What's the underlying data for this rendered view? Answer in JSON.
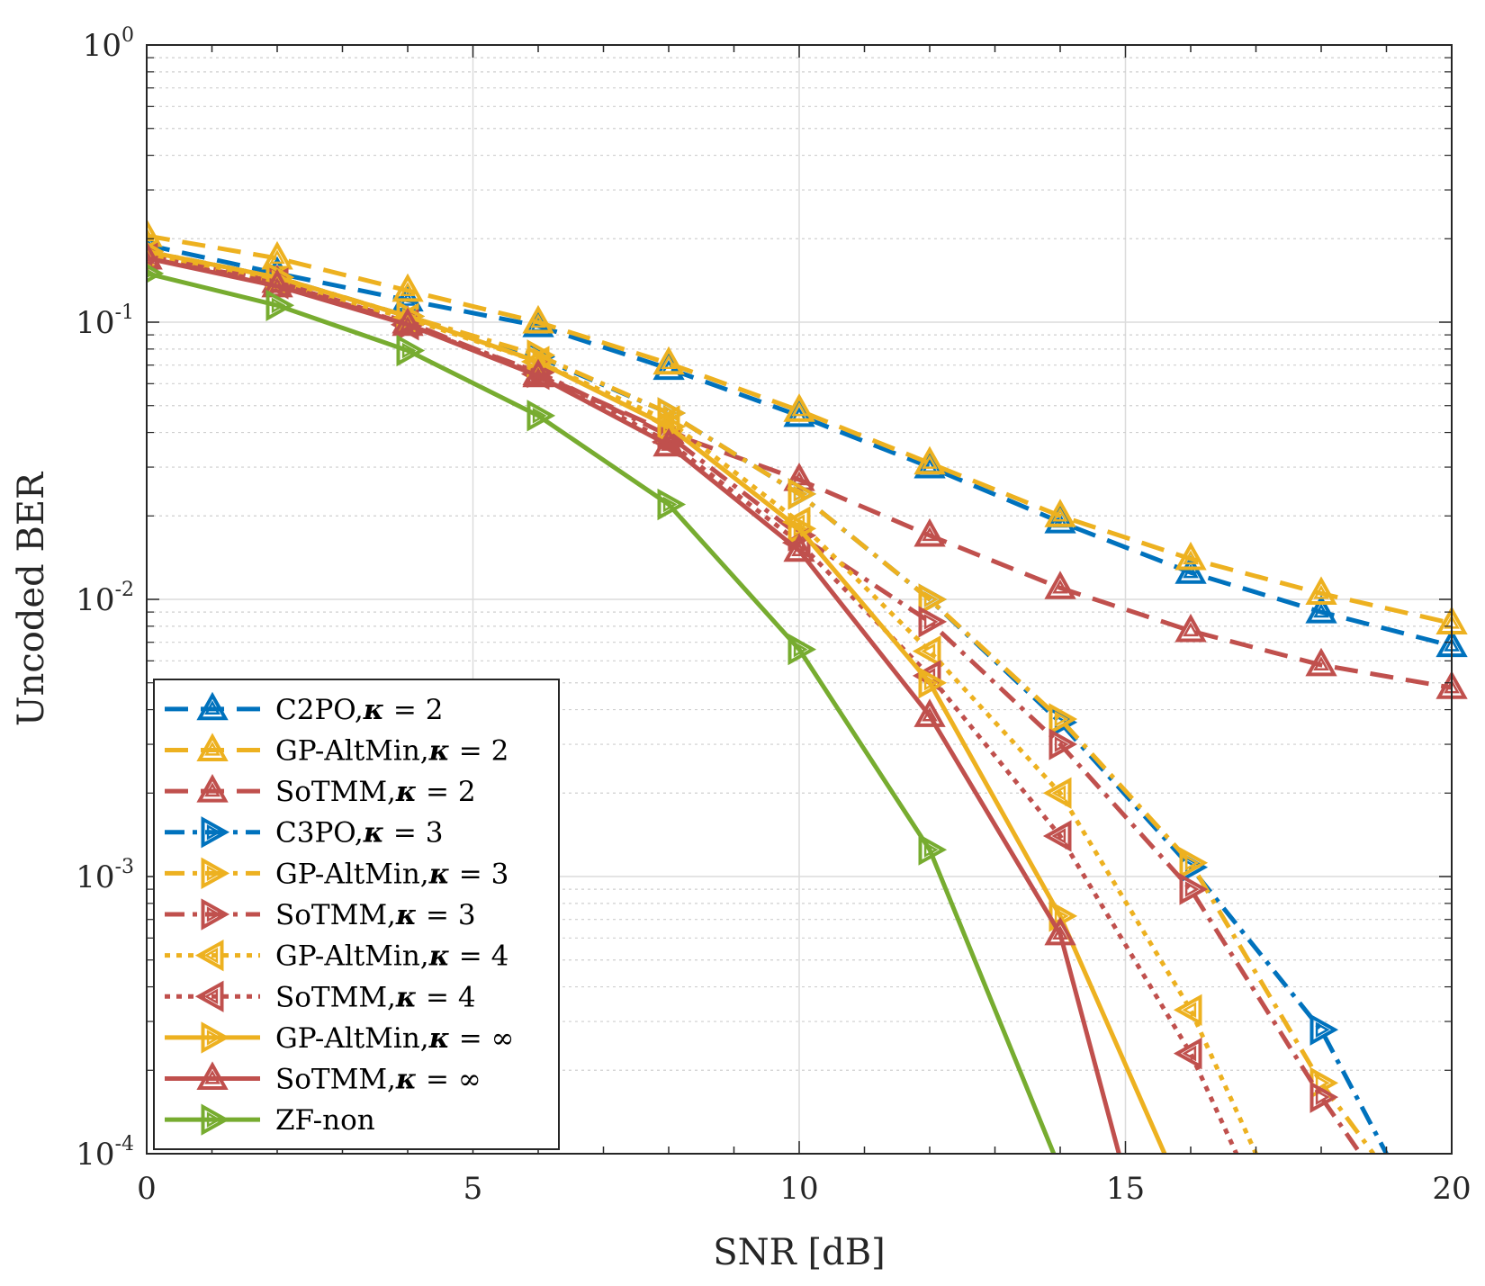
{
  "chart_data": {
    "type": "line",
    "title": "",
    "xlabel": "SNR [dB]",
    "ylabel": "Uncoded BER",
    "xlim": [
      0,
      20
    ],
    "ylim": [
      0.0001,
      1
    ],
    "yscale": "log",
    "grid": true,
    "legend_position": "bottom-left",
    "x_ticks": [
      {
        "value": 0,
        "label": "0"
      },
      {
        "value": 5,
        "label": "5"
      },
      {
        "value": 10,
        "label": "10"
      },
      {
        "value": 15,
        "label": "15"
      },
      {
        "value": 20,
        "label": "20"
      }
    ],
    "y_ticks": [
      {
        "value": 1,
        "label": "10",
        "exp": "0"
      },
      {
        "value": 0.1,
        "label": "10",
        "exp": "-1"
      },
      {
        "value": 0.01,
        "label": "10",
        "exp": "-2"
      },
      {
        "value": 0.001,
        "label": "10",
        "exp": "-3"
      },
      {
        "value": 0.0001,
        "label": "10",
        "exp": "-4"
      }
    ],
    "series": [
      {
        "name": "C2PO,κ = 2",
        "color": "#0072BD",
        "dash": "dashed",
        "marker": "triangle-up",
        "x": [
          0,
          2,
          4,
          6,
          8,
          10,
          12,
          14,
          16,
          18,
          20
        ],
        "y": [
          0.19,
          0.15,
          0.12,
          0.097,
          0.068,
          0.046,
          0.03,
          0.019,
          0.0125,
          0.009,
          0.0068
        ]
      },
      {
        "name": "GP-AltMin,κ = 2",
        "color": "#EDB120",
        "dash": "dashed",
        "marker": "triangle-up",
        "x": [
          0,
          2,
          4,
          6,
          8,
          10,
          12,
          14,
          16,
          18,
          20
        ],
        "y": [
          0.205,
          0.17,
          0.13,
          0.1,
          0.071,
          0.048,
          0.031,
          0.02,
          0.014,
          0.0105,
          0.0082
        ]
      },
      {
        "name": "SoTMM,κ = 2",
        "color": "#C0504D",
        "dash": "dashed",
        "marker": "triangle-up",
        "x": [
          0,
          2,
          4,
          6,
          8,
          10,
          12,
          14,
          16,
          18,
          20
        ],
        "y": [
          0.17,
          0.14,
          0.1,
          0.065,
          0.04,
          0.027,
          0.017,
          0.011,
          0.0077,
          0.0058,
          0.0048
        ]
      },
      {
        "name": "C3PO,κ = 3",
        "color": "#0072BD",
        "dash": "dashdot",
        "marker": "triangle-right",
        "x": [
          0,
          2,
          4,
          6,
          8,
          10,
          12,
          14,
          16,
          18,
          19
        ],
        "y": [
          0.18,
          0.145,
          0.105,
          0.075,
          0.047,
          0.024,
          0.01,
          0.0036,
          0.00108,
          0.00028,
          0.0001
        ]
      },
      {
        "name": "GP-AltMin,κ = 3",
        "color": "#EDB120",
        "dash": "dashdot",
        "marker": "triangle-right",
        "x": [
          0,
          2,
          4,
          6,
          8,
          10,
          12,
          14,
          16,
          18,
          18.8
        ],
        "y": [
          0.18,
          0.145,
          0.105,
          0.076,
          0.047,
          0.024,
          0.01,
          0.0037,
          0.00112,
          0.00018,
          0.0001
        ]
      },
      {
        "name": "SoTMM,κ = 3",
        "color": "#C0504D",
        "dash": "dashdot",
        "marker": "triangle-right",
        "x": [
          0,
          2,
          4,
          6,
          8,
          10,
          12,
          14,
          16,
          18,
          18.6
        ],
        "y": [
          0.175,
          0.14,
          0.098,
          0.066,
          0.039,
          0.017,
          0.0083,
          0.003,
          0.0009,
          0.00016,
          0.0001
        ]
      },
      {
        "name": "GP-AltMin,κ = 4",
        "color": "#EDB120",
        "dash": "dotted",
        "marker": "triangle-left",
        "x": [
          0,
          2,
          4,
          6,
          8,
          10,
          12,
          14,
          16,
          17
        ],
        "y": [
          0.175,
          0.14,
          0.103,
          0.072,
          0.044,
          0.019,
          0.0065,
          0.002,
          0.00033,
          0.0001
        ]
      },
      {
        "name": "SoTMM,κ = 4",
        "color": "#C0504D",
        "dash": "dotted",
        "marker": "triangle-left",
        "x": [
          0,
          2,
          4,
          6,
          8,
          10,
          12,
          14,
          16,
          16.7
        ],
        "y": [
          0.17,
          0.138,
          0.098,
          0.065,
          0.037,
          0.016,
          0.0053,
          0.0014,
          0.00023,
          0.0001
        ]
      },
      {
        "name": "GP-AltMin,κ = ∞",
        "color": "#EDB120",
        "dash": "solid",
        "marker": "triangle-right",
        "x": [
          0,
          2,
          4,
          6,
          8,
          10,
          12,
          14,
          15.6
        ],
        "y": [
          0.18,
          0.145,
          0.105,
          0.072,
          0.042,
          0.018,
          0.005,
          0.00072,
          0.0001
        ]
      },
      {
        "name": "SoTMM,κ = ∞",
        "color": "#C0504D",
        "dash": "solid",
        "marker": "triangle-up",
        "x": [
          0,
          2,
          4,
          6,
          8,
          10,
          12,
          14,
          14.9
        ],
        "y": [
          0.17,
          0.135,
          0.098,
          0.064,
          0.036,
          0.015,
          0.0038,
          0.00062,
          0.0001
        ]
      },
      {
        "name": "ZF-non",
        "color": "#77AC30",
        "dash": "solid",
        "marker": "triangle-right",
        "x": [
          0,
          2,
          4,
          6,
          8,
          10,
          12,
          13.9
        ],
        "y": [
          0.15,
          0.115,
          0.079,
          0.046,
          0.022,
          0.0066,
          0.00125,
          0.0001
        ]
      }
    ]
  }
}
